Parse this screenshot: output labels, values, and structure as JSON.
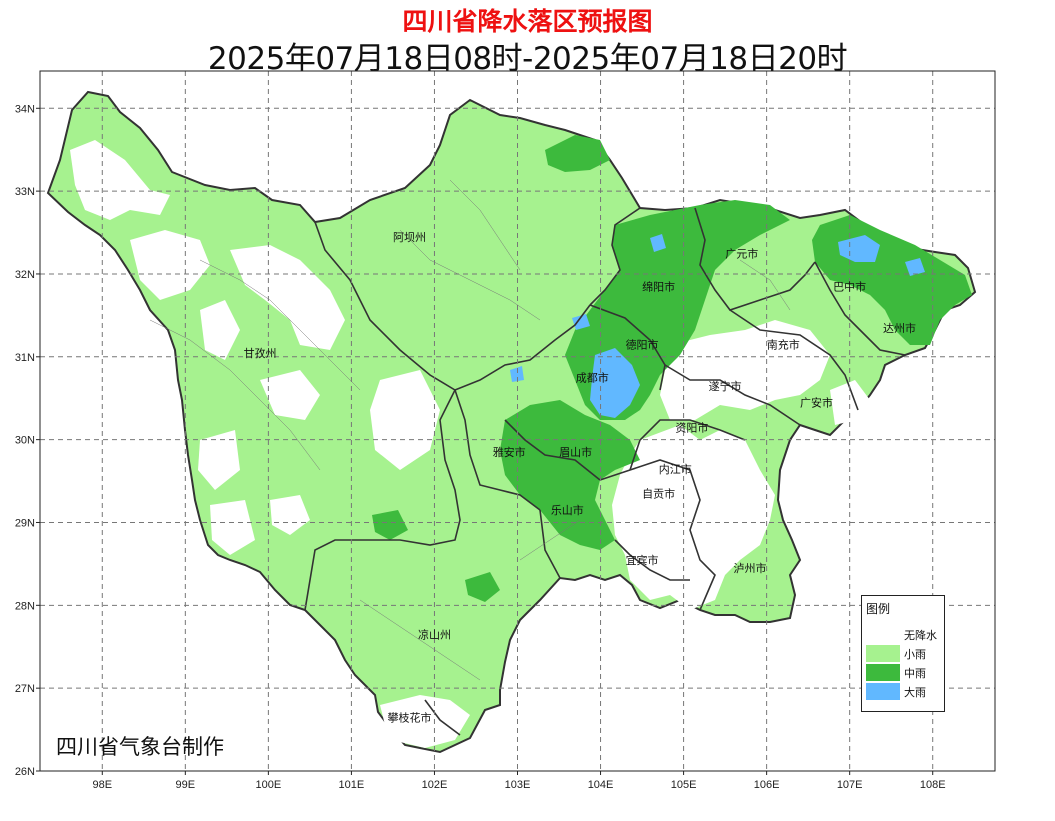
{
  "title": "四川省降水落区预报图",
  "subtitle": "2025年07月18日08时-2025年07月18日20时",
  "credit": "四川省气象台制作",
  "axes": {
    "lon_labels": [
      "98E",
      "99E",
      "100E",
      "101E",
      "102E",
      "103E",
      "104E",
      "105E",
      "106E",
      "107E",
      "108E"
    ],
    "lat_labels": [
      "26N",
      "27N",
      "28N",
      "29N",
      "30N",
      "31N",
      "32N",
      "33N",
      "34N"
    ]
  },
  "cities": [
    {
      "name": "阿坝州",
      "lon": 101.7,
      "lat": 32.4
    },
    {
      "name": "甘孜州",
      "lon": 99.9,
      "lat": 31.0
    },
    {
      "name": "绵阳市",
      "lon": 104.7,
      "lat": 31.8
    },
    {
      "name": "广元市",
      "lon": 105.7,
      "lat": 32.2
    },
    {
      "name": "巴中市",
      "lon": 107.0,
      "lat": 31.8
    },
    {
      "name": "达州市",
      "lon": 107.6,
      "lat": 31.3
    },
    {
      "name": "德阳市",
      "lon": 104.5,
      "lat": 31.1
    },
    {
      "name": "南充市",
      "lon": 106.2,
      "lat": 31.1
    },
    {
      "name": "成都市",
      "lon": 103.9,
      "lat": 30.7
    },
    {
      "name": "遂宁市",
      "lon": 105.5,
      "lat": 30.6
    },
    {
      "name": "广安市",
      "lon": 106.6,
      "lat": 30.4
    },
    {
      "name": "资阳市",
      "lon": 105.1,
      "lat": 30.1
    },
    {
      "name": "雅安市",
      "lon": 102.9,
      "lat": 29.8
    },
    {
      "name": "眉山市",
      "lon": 103.7,
      "lat": 29.8
    },
    {
      "name": "内江市",
      "lon": 104.9,
      "lat": 29.6
    },
    {
      "name": "自贡市",
      "lon": 104.7,
      "lat": 29.3
    },
    {
      "name": "乐山市",
      "lon": 103.6,
      "lat": 29.1
    },
    {
      "name": "宜宾市",
      "lon": 104.5,
      "lat": 28.5
    },
    {
      "name": "泸州市",
      "lon": 105.8,
      "lat": 28.4
    },
    {
      "name": "凉山州",
      "lon": 102.0,
      "lat": 27.6
    },
    {
      "name": "攀枝花市",
      "lon": 101.7,
      "lat": 26.6
    }
  ],
  "legend": {
    "title": "图例",
    "items": [
      {
        "label": "无降水",
        "color": "#ffffff"
      },
      {
        "label": "小雨",
        "color": "#a6f28f"
      },
      {
        "label": "中雨",
        "color": "#3dba3d"
      },
      {
        "label": "大雨",
        "color": "#61b8ff"
      }
    ]
  },
  "colors": {
    "light_rain": "#a6f28f",
    "moderate_rain": "#3dba3d",
    "heavy_rain": "#61b8ff",
    "no_rain": "#ffffff",
    "boundary": "#333333",
    "grid": "#777777",
    "title": "#ee1111"
  }
}
